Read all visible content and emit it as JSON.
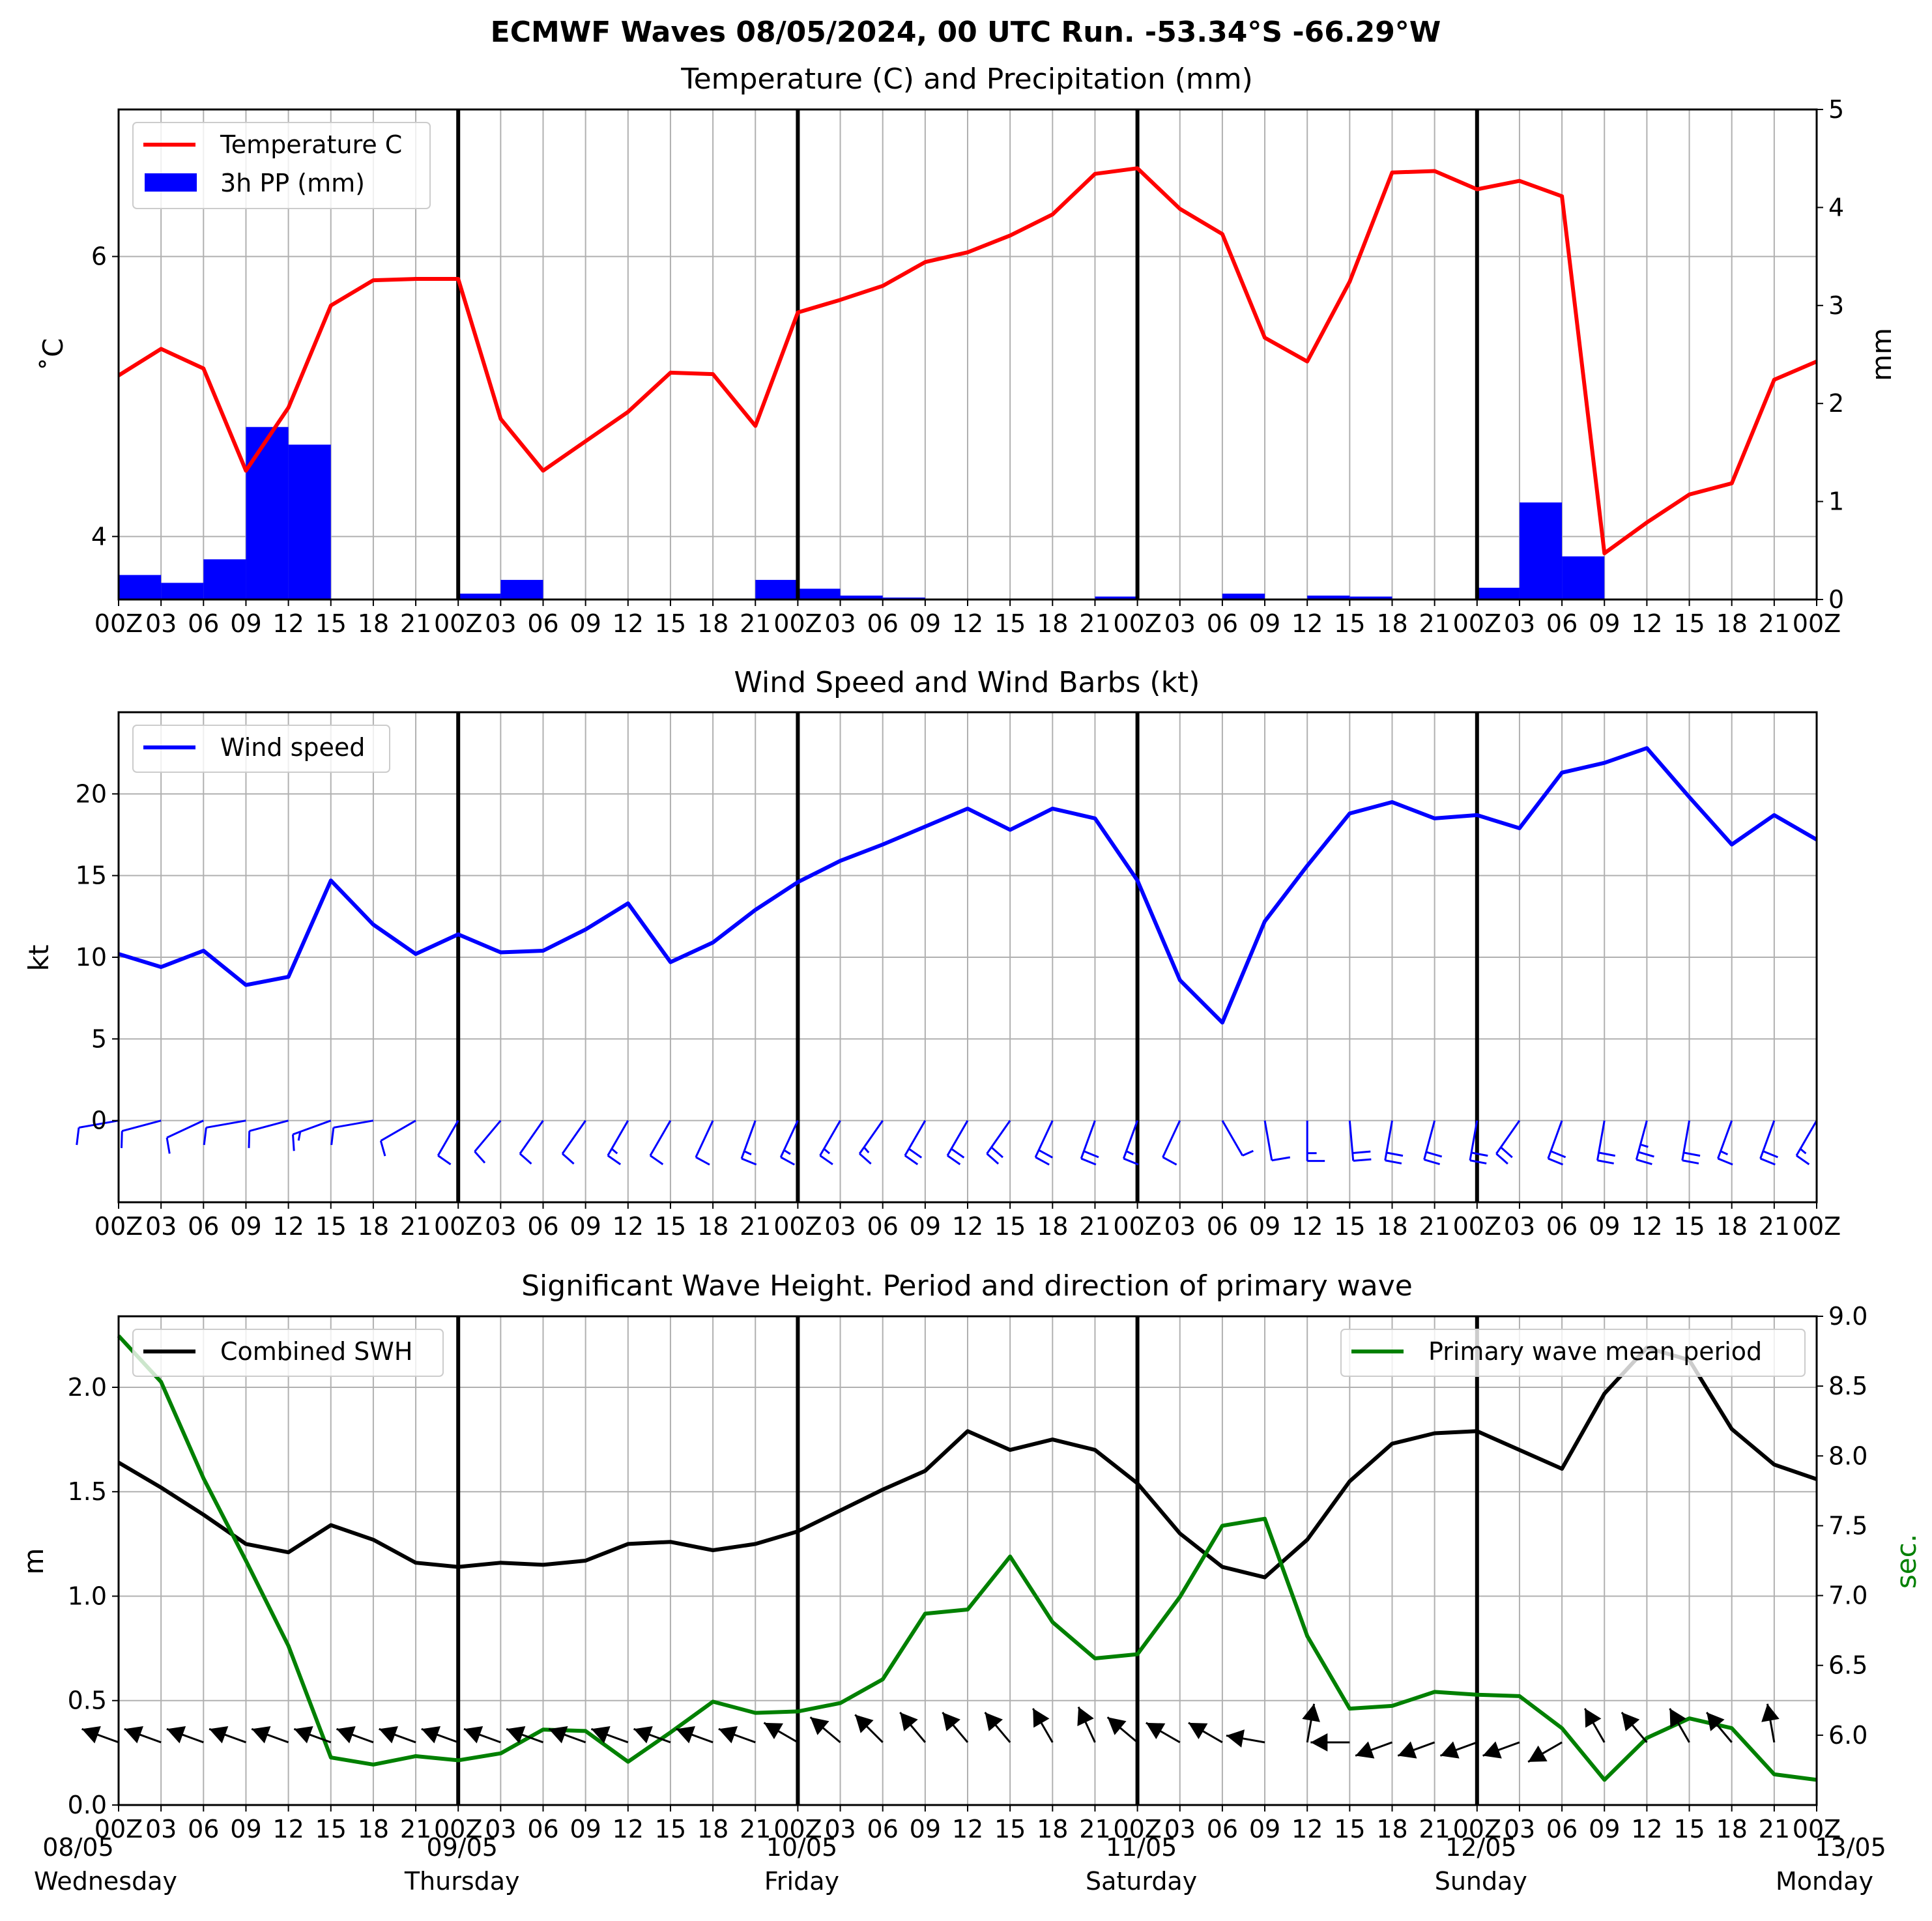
{
  "figure": {
    "title": "ECMWF Waves 08/05/2024, 00 UTC Run. -53.34°S -66.29°W"
  },
  "colors": {
    "temperature": "#ff0000",
    "precipitation": "#0000ff",
    "wind": "#0000ff",
    "swh": "#000000",
    "period": "#008000",
    "grid": "#b0b0b0"
  },
  "x_tick_labels": [
    "00Z",
    "03",
    "06",
    "09",
    "12",
    "15",
    "18",
    "21",
    "00Z",
    "03",
    "06",
    "09",
    "12",
    "15",
    "18",
    "21",
    "00Z",
    "03",
    "06",
    "09",
    "12",
    "15",
    "18",
    "21",
    "00Z",
    "03",
    "06",
    "09",
    "12",
    "15",
    "18",
    "21",
    "00Z",
    "03",
    "06",
    "09",
    "12",
    "15",
    "18",
    "21",
    "00Z"
  ],
  "day_labels": [
    {
      "date": "08/05",
      "day": "Wednesday"
    },
    {
      "date": "09/05",
      "day": "Thursday"
    },
    {
      "date": "10/05",
      "day": "Friday"
    },
    {
      "date": "11/05",
      "day": "Saturday"
    },
    {
      "date": "12/05",
      "day": "Sunday"
    },
    {
      "date": "13/05",
      "day": "Monday"
    }
  ],
  "chart_data": [
    {
      "type": "line",
      "title": "Temperature (C) and Precipitation (mm)",
      "x_hours": [
        0,
        3,
        6,
        9,
        12,
        15,
        18,
        21,
        24,
        27,
        30,
        33,
        36,
        39,
        42,
        45,
        48,
        51,
        54,
        57,
        60,
        63,
        66,
        69,
        72,
        75,
        78,
        81,
        84,
        87,
        90,
        93,
        96,
        99,
        102,
        105,
        108,
        111,
        114,
        117,
        120
      ],
      "ylabel": "$^\\circ$C",
      "ylabel_display": "˚C",
      "y_ticks": [
        4,
        6
      ],
      "ylim": [
        3.55,
        7.05
      ],
      "y2label": "mm",
      "y2_ticks": [
        0,
        1,
        2,
        3,
        4,
        5
      ],
      "y2lim": [
        0,
        5
      ],
      "legend_position": "upper-left",
      "series": [
        {
          "name": "Temperature C",
          "kind": "line",
          "axis": "left",
          "values": [
            5.15,
            5.34,
            5.2,
            4.47,
            4.92,
            5.65,
            5.83,
            5.84,
            5.84,
            4.84,
            4.47,
            4.68,
            4.89,
            5.17,
            5.16,
            4.79,
            5.6,
            5.69,
            5.79,
            5.96,
            6.03,
            6.15,
            6.3,
            6.59,
            6.63,
            6.34,
            6.16,
            5.42,
            5.25,
            5.82,
            6.6,
            6.61,
            6.48,
            6.54,
            6.43,
            3.88,
            4.1,
            4.3,
            4.38,
            5.12,
            5.25
          ]
        },
        {
          "name": "3h PP (mm)",
          "kind": "bar",
          "axis": "right",
          "values": [
            0.25,
            0.17,
            0.41,
            1.76,
            1.58,
            0.01,
            0,
            0,
            0.06,
            0.2,
            0,
            0,
            0,
            0,
            0.01,
            0.2,
            0.11,
            0.04,
            0.02,
            0.01,
            0,
            0,
            0,
            0.03,
            0,
            0,
            0.06,
            0.01,
            0.04,
            0.03,
            0,
            0,
            0.12,
            0.99,
            0.44,
            0,
            0,
            0,
            0,
            0,
            0
          ]
        }
      ]
    },
    {
      "type": "line",
      "title": "Wind Speed and Wind Barbs (kt)",
      "x_hours": [
        0,
        3,
        6,
        9,
        12,
        15,
        18,
        21,
        24,
        27,
        30,
        33,
        36,
        39,
        42,
        45,
        48,
        51,
        54,
        57,
        60,
        63,
        66,
        69,
        72,
        75,
        78,
        81,
        84,
        87,
        90,
        93,
        96,
        99,
        102,
        105,
        108,
        111,
        114,
        117,
        120
      ],
      "ylabel": "kt",
      "y_ticks": [
        0,
        5,
        10,
        15,
        20
      ],
      "ylim": [
        -5,
        25
      ],
      "legend_position": "upper-left",
      "series": [
        {
          "name": "Wind speed",
          "values": [
            10.2,
            9.4,
            10.4,
            8.3,
            8.8,
            14.7,
            12.0,
            10.2,
            11.4,
            10.3,
            10.4,
            11.7,
            13.3,
            9.7,
            10.9,
            12.9,
            14.6,
            15.9,
            16.9,
            18.0,
            19.1,
            17.8,
            19.1,
            18.5,
            14.7,
            8.6,
            6.0,
            12.2,
            15.6,
            18.8,
            19.5,
            18.5,
            18.7,
            17.9,
            21.3,
            21.9,
            22.8,
            19.8,
            16.9,
            18.7,
            17.2
          ]
        }
      ],
      "wind_direction_deg": [
        280,
        285,
        295,
        280,
        285,
        290,
        280,
        300,
        330,
        320,
        325,
        325,
        330,
        330,
        335,
        340,
        335,
        330,
        325,
        330,
        330,
        325,
        335,
        340,
        340,
        335,
        30,
        10,
        0,
        5,
        350,
        345,
        350,
        325,
        340,
        350,
        345,
        350,
        340,
        340,
        330
      ]
    },
    {
      "type": "line",
      "title": "Significant Wave Height. Period and direction of primary wave",
      "x_hours": [
        0,
        3,
        6,
        9,
        12,
        15,
        18,
        21,
        24,
        27,
        30,
        33,
        36,
        39,
        42,
        45,
        48,
        51,
        54,
        57,
        60,
        63,
        66,
        69,
        72,
        75,
        78,
        81,
        84,
        87,
        90,
        93,
        96,
        99,
        102,
        105,
        108,
        111,
        114,
        117,
        120
      ],
      "ylabel": "m",
      "y_ticks": [
        0.0,
        0.5,
        1.0,
        1.5,
        2.0
      ],
      "ylim": [
        0,
        2.34
      ],
      "y2label": "sec.",
      "y2_ticks": [
        6.0,
        6.5,
        7.0,
        7.5,
        8.0,
        8.5,
        9.0
      ],
      "y2lim": [
        5.5,
        9.0
      ],
      "series": [
        {
          "name": "Combined SWH",
          "axis": "left",
          "legend_position": "upper-left",
          "values": [
            1.64,
            1.52,
            1.39,
            1.25,
            1.21,
            1.34,
            1.27,
            1.16,
            1.14,
            1.16,
            1.15,
            1.17,
            1.25,
            1.26,
            1.22,
            1.25,
            1.31,
            1.41,
            1.51,
            1.6,
            1.79,
            1.7,
            1.75,
            1.7,
            1.54,
            1.3,
            1.14,
            1.09,
            1.27,
            1.55,
            1.73,
            1.78,
            1.79,
            1.7,
            1.61,
            1.97,
            2.19,
            2.13,
            1.8,
            1.63,
            1.56
          ]
        },
        {
          "name": "Primary wave mean period",
          "axis": "right",
          "legend_position": "upper-right",
          "values": [
            8.86,
            8.53,
            7.84,
            7.25,
            6.64,
            5.84,
            5.79,
            5.85,
            5.82,
            5.87,
            6.04,
            6.03,
            5.81,
            6.02,
            6.24,
            6.16,
            6.17,
            6.23,
            6.4,
            6.87,
            6.9,
            7.28,
            6.81,
            6.55,
            6.58,
            6.99,
            7.5,
            7.55,
            6.71,
            6.19,
            6.21,
            6.31,
            6.29,
            6.28,
            6.05,
            5.68,
            5.98,
            6.12,
            6.05,
            5.72,
            5.68
          ]
        }
      ],
      "primary_wave_direction_deg": [
        290,
        290,
        290,
        290,
        290,
        290,
        290,
        290,
        290,
        290,
        290,
        290,
        290,
        290,
        290,
        290,
        300,
        310,
        315,
        320,
        320,
        320,
        330,
        335,
        310,
        300,
        300,
        280,
        10,
        270,
        250,
        250,
        250,
        250,
        240,
        330,
        320,
        330,
        320,
        350,
        350
      ]
    }
  ]
}
